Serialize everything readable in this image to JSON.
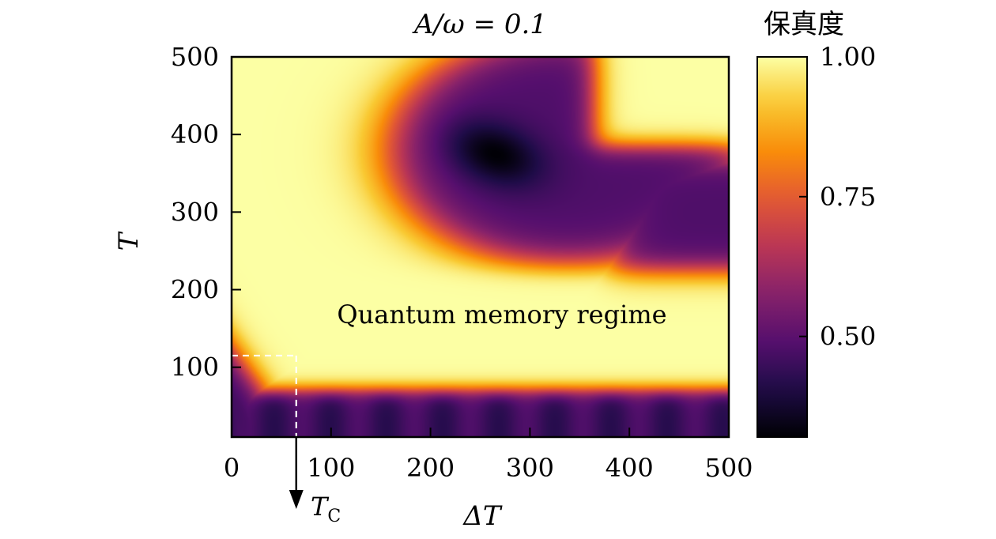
{
  "chart_data": {
    "type": "heatmap",
    "title": "A/ω = 0.1",
    "xlabel": "ΔT",
    "ylabel": "T",
    "xlim": [
      0,
      500
    ],
    "ylim": [
      10,
      500
    ],
    "xticks": [
      "0",
      "100",
      "200",
      "300",
      "400",
      "500"
    ],
    "yticks": [
      "100",
      "200",
      "300",
      "400",
      "500"
    ],
    "colorbar": {
      "label": "保真度",
      "range": [
        0.32,
        1.0
      ],
      "ticks": [
        "1.00",
        "0.75",
        "0.50"
      ],
      "colormap": "inferno"
    },
    "annotations": {
      "region": "Quantum memory regime",
      "marker": "T",
      "marker_sub": "C",
      "marker_x": 65,
      "marker_y": 115
    },
    "features": {
      "low_fidelity_band_T": [
        10,
        75
      ],
      "diagonal_boundary": "T = 115 (1 - ΔT/65) roughly, low fidelity below",
      "upper_dip_center": [
        265,
        375
      ],
      "upper_dip_min": 0.32
    }
  },
  "colors": {
    "dashed_marker": "#ffffff",
    "axes": "#000000"
  }
}
